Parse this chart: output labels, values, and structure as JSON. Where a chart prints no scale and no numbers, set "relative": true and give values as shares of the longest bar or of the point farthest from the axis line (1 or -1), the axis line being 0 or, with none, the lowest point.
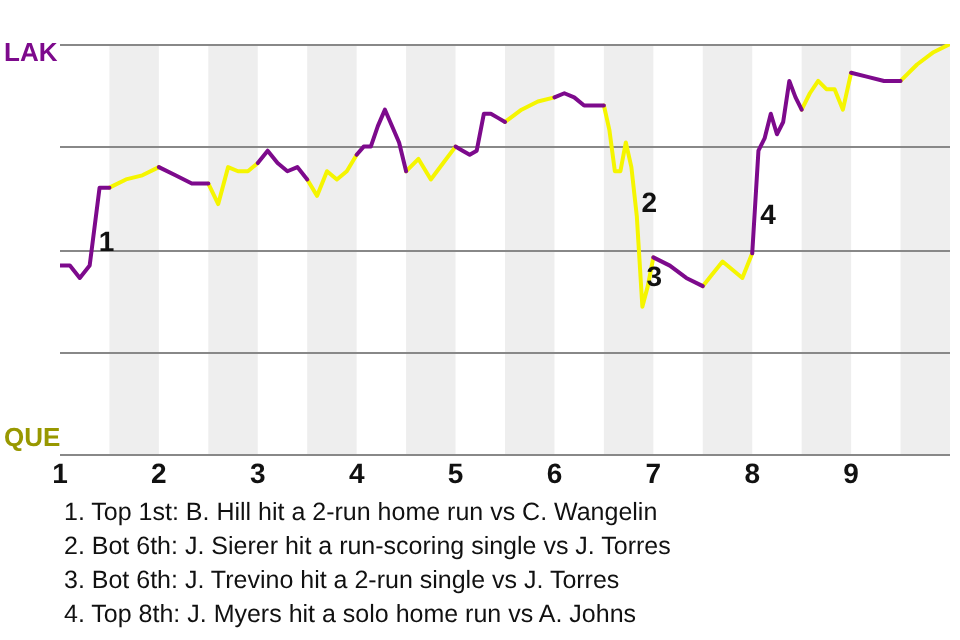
{
  "chart_data": {
    "type": "line",
    "relative": true,
    "x": [
      1.0,
      1.1,
      1.2,
      1.3,
      1.4,
      1.5,
      1.667,
      1.833,
      2.0,
      2.167,
      2.333,
      2.5,
      2.6,
      2.7,
      2.8,
      2.9,
      3.0,
      3.1,
      3.2,
      3.3,
      3.4,
      3.5,
      3.6,
      3.7,
      3.8,
      3.9,
      4.0,
      4.071,
      4.143,
      4.214,
      4.286,
      4.357,
      4.429,
      4.5,
      4.625,
      4.75,
      4.875,
      5.0,
      5.071,
      5.143,
      5.214,
      5.286,
      5.357,
      5.429,
      5.5,
      5.667,
      5.833,
      6.0,
      6.1,
      6.2,
      6.3,
      6.4,
      6.5,
      6.556,
      6.611,
      6.667,
      6.722,
      6.778,
      6.833,
      6.889,
      6.944,
      7.0,
      7.167,
      7.333,
      7.5,
      7.6,
      7.7,
      7.8,
      7.9,
      8.0,
      8.063,
      8.125,
      8.188,
      8.25,
      8.313,
      8.375,
      8.438,
      8.5,
      8.583,
      8.667,
      8.75,
      8.833,
      8.917,
      9.0,
      9.167,
      9.333,
      9.5,
      9.667,
      9.833,
      10.0
    ],
    "xlim": [
      1,
      10
    ],
    "xticks": [
      1,
      2,
      3,
      4,
      5,
      6,
      7,
      8,
      9
    ],
    "grid": "y",
    "legend": false,
    "marker": "none",
    "line_style": "solid",
    "series": [
      {
        "color": "#7d0a8c",
        "values": [
          0.46,
          0.46,
          0.43,
          0.46,
          0.65,
          0.65,
          null,
          null,
          0.7,
          0.68,
          0.66,
          0.66,
          null,
          null,
          null,
          null,
          0.71,
          0.74,
          0.71,
          0.69,
          0.7,
          0.67,
          null,
          null,
          null,
          null,
          0.73,
          0.75,
          0.75,
          0.8,
          0.84,
          0.8,
          0.76,
          0.69,
          null,
          null,
          null,
          0.75,
          0.74,
          0.73,
          0.74,
          0.83,
          0.83,
          0.82,
          0.81,
          null,
          null,
          0.87,
          0.88,
          0.87,
          0.85,
          0.85,
          0.85,
          null,
          null,
          null,
          null,
          null,
          null,
          null,
          null,
          0.48,
          0.46,
          0.43,
          0.41,
          null,
          null,
          null,
          null,
          0.49,
          0.74,
          0.77,
          0.83,
          0.78,
          0.81,
          0.91,
          0.87,
          0.84,
          null,
          null,
          null,
          null,
          null,
          0.93,
          0.92,
          0.91,
          0.91,
          null,
          null,
          null
        ]
      },
      {
        "color": "#f5f500",
        "values": [
          null,
          null,
          null,
          null,
          null,
          0.65,
          0.67,
          0.68,
          0.7,
          null,
          null,
          0.66,
          0.61,
          0.7,
          0.69,
          0.69,
          0.71,
          null,
          null,
          null,
          null,
          0.67,
          0.63,
          0.69,
          0.67,
          0.69,
          0.73,
          null,
          null,
          null,
          null,
          null,
          null,
          0.69,
          0.72,
          0.67,
          0.71,
          0.75,
          null,
          null,
          null,
          null,
          null,
          null,
          0.81,
          0.84,
          0.86,
          0.87,
          null,
          null,
          null,
          null,
          0.85,
          0.79,
          0.69,
          0.69,
          0.76,
          0.7,
          0.58,
          0.36,
          0.41,
          0.48,
          null,
          null,
          0.41,
          0.44,
          0.47,
          0.45,
          0.43,
          0.49,
          null,
          null,
          null,
          null,
          null,
          null,
          null,
          0.84,
          0.88,
          0.91,
          0.89,
          0.89,
          0.84,
          0.93,
          null,
          null,
          0.91,
          0.95,
          0.98,
          1
        ]
      }
    ],
    "bands": [
      {
        "axis": "x",
        "from": 1.5,
        "to": 2,
        "color": "#eeeeee"
      },
      {
        "axis": "x",
        "from": 2.5,
        "to": 3,
        "color": "#eeeeee"
      },
      {
        "axis": "x",
        "from": 3.5,
        "to": 4,
        "color": "#eeeeee"
      },
      {
        "axis": "x",
        "from": 4.5,
        "to": 5,
        "color": "#eeeeee"
      },
      {
        "axis": "x",
        "from": 5.5,
        "to": 6,
        "color": "#eeeeee"
      },
      {
        "axis": "x",
        "from": 6.5,
        "to": 7,
        "color": "#eeeeee"
      },
      {
        "axis": "x",
        "from": 7.5,
        "to": 8,
        "color": "#eeeeee"
      },
      {
        "axis": "x",
        "from": 8.5,
        "to": 9,
        "color": "#eeeeee"
      },
      {
        "axis": "x",
        "from": 9.5,
        "to": 10,
        "color": "#eeeeee"
      }
    ],
    "annotations": [
      "LAK",
      "QUE",
      {
        "text": "1",
        "x": 1.33,
        "y": 0.515
      },
      {
        "text": "2",
        "x": 6.82,
        "y": 0.61
      },
      {
        "text": "3",
        "x": 6.87,
        "y": 0.43
      },
      {
        "text": "4",
        "x": 8.02,
        "y": 0.58
      },
      "1. Top 1st: B. Hill hit a 2-run home run vs C. Wangelin",
      "2. Bot 6th: J. Sierer hit a run-scoring single vs J. Torres",
      "3. Bot 6th: J. Trevino hit a 2-run single vs J. Torres",
      "4. Top 8th: J. Myers hit a solo home run vs A. Johns"
    ]
  }
}
